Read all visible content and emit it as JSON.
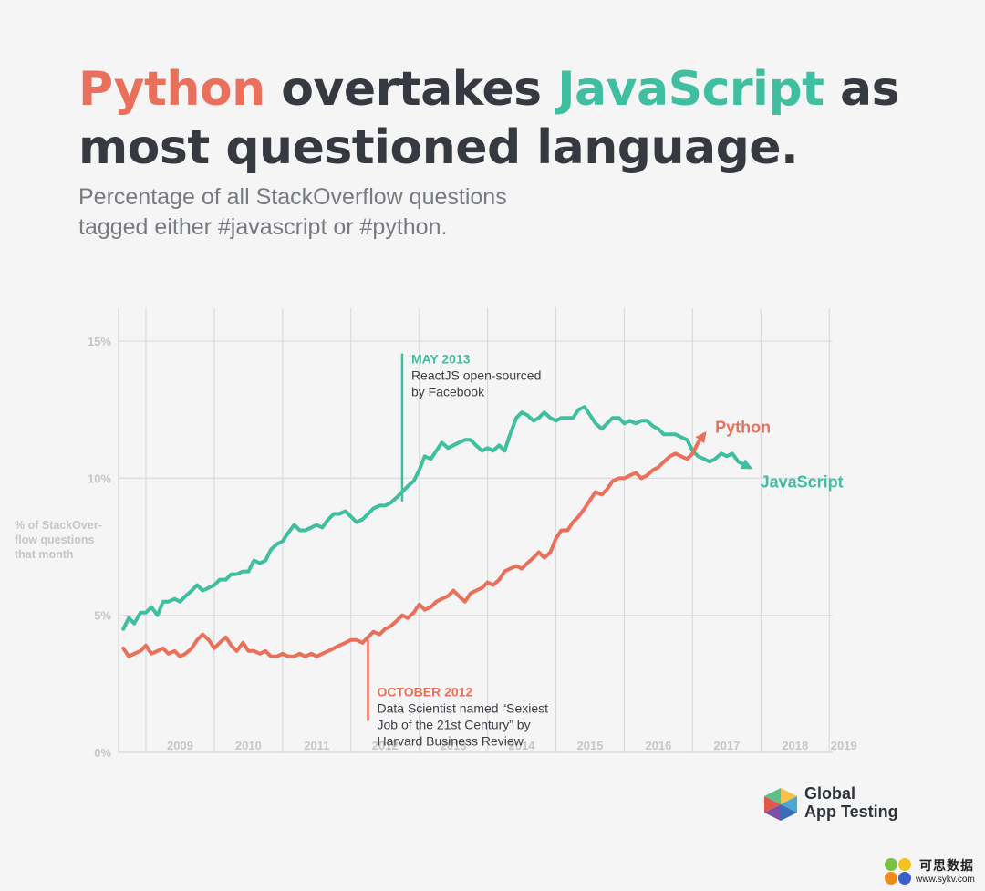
{
  "title": {
    "part1": "Python",
    "part2": " overtakes ",
    "part3": "JavaScript",
    "part4": " as most questioned language."
  },
  "subtitle": {
    "line1": "Percentage of all StackOverflow questions",
    "line2": "tagged either #javascript or #python."
  },
  "colors": {
    "python": "#e9705b",
    "javascript": "#3fbfa0",
    "title_dark": "#363a40",
    "grid": "#dadbdd",
    "axis_text": "#c4c6c9"
  },
  "chart_data": {
    "type": "line",
    "ylabel_lines": [
      "% of StackOver-",
      "flow questions",
      "that month"
    ],
    "ylim": [
      0,
      16.2
    ],
    "yticks": [
      {
        "value": 0,
        "label": "0%"
      },
      {
        "value": 5,
        "label": "5%"
      },
      {
        "value": 10,
        "label": "10%"
      },
      {
        "value": 15,
        "label": "15%"
      }
    ],
    "xlim": [
      2008.6,
      2019.05
    ],
    "xticks": [
      {
        "value": 2009,
        "label": "2009"
      },
      {
        "value": 2010,
        "label": "2010"
      },
      {
        "value": 2011,
        "label": "2011"
      },
      {
        "value": 2012,
        "label": "2012"
      },
      {
        "value": 2013,
        "label": "2013"
      },
      {
        "value": 2014,
        "label": "2014"
      },
      {
        "value": 2015,
        "label": "2015"
      },
      {
        "value": 2016,
        "label": "2016"
      },
      {
        "value": 2017,
        "label": "2017"
      },
      {
        "value": 2018,
        "label": "2018"
      },
      {
        "value": 2019,
        "label": "2019"
      }
    ],
    "grid": true,
    "series": [
      {
        "name": "JavaScript",
        "color": "#3fbfa0",
        "points": [
          [
            2008.67,
            4.5
          ],
          [
            2008.75,
            4.9
          ],
          [
            2008.83,
            4.7
          ],
          [
            2008.92,
            5.1
          ],
          [
            2009.0,
            5.1
          ],
          [
            2009.08,
            5.3
          ],
          [
            2009.17,
            5.0
          ],
          [
            2009.25,
            5.5
          ],
          [
            2009.33,
            5.5
          ],
          [
            2009.42,
            5.6
          ],
          [
            2009.5,
            5.5
          ],
          [
            2009.58,
            5.7
          ],
          [
            2009.67,
            5.9
          ],
          [
            2009.75,
            6.1
          ],
          [
            2009.83,
            5.9
          ],
          [
            2009.92,
            6.0
          ],
          [
            2010.0,
            6.1
          ],
          [
            2010.08,
            6.3
          ],
          [
            2010.17,
            6.3
          ],
          [
            2010.25,
            6.5
          ],
          [
            2010.33,
            6.5
          ],
          [
            2010.42,
            6.6
          ],
          [
            2010.5,
            6.6
          ],
          [
            2010.58,
            7.0
          ],
          [
            2010.67,
            6.9
          ],
          [
            2010.75,
            7.0
          ],
          [
            2010.83,
            7.4
          ],
          [
            2010.92,
            7.6
          ],
          [
            2011.0,
            7.7
          ],
          [
            2011.08,
            8.0
          ],
          [
            2011.17,
            8.3
          ],
          [
            2011.25,
            8.1
          ],
          [
            2011.33,
            8.1
          ],
          [
            2011.42,
            8.2
          ],
          [
            2011.5,
            8.3
          ],
          [
            2011.58,
            8.2
          ],
          [
            2011.67,
            8.5
          ],
          [
            2011.75,
            8.7
          ],
          [
            2011.83,
            8.7
          ],
          [
            2011.92,
            8.8
          ],
          [
            2012.0,
            8.6
          ],
          [
            2012.08,
            8.4
          ],
          [
            2012.17,
            8.5
          ],
          [
            2012.25,
            8.7
          ],
          [
            2012.33,
            8.9
          ],
          [
            2012.42,
            9.0
          ],
          [
            2012.5,
            9.0
          ],
          [
            2012.58,
            9.1
          ],
          [
            2012.67,
            9.3
          ],
          [
            2012.75,
            9.5
          ],
          [
            2012.83,
            9.7
          ],
          [
            2012.92,
            9.9
          ],
          [
            2013.0,
            10.3
          ],
          [
            2013.08,
            10.8
          ],
          [
            2013.17,
            10.7
          ],
          [
            2013.25,
            11.0
          ],
          [
            2013.33,
            11.3
          ],
          [
            2013.42,
            11.1
          ],
          [
            2013.5,
            11.2
          ],
          [
            2013.58,
            11.3
          ],
          [
            2013.67,
            11.4
          ],
          [
            2013.75,
            11.4
          ],
          [
            2013.83,
            11.2
          ],
          [
            2013.92,
            11.0
          ],
          [
            2014.0,
            11.1
          ],
          [
            2014.08,
            11.0
          ],
          [
            2014.17,
            11.2
          ],
          [
            2014.25,
            11.0
          ],
          [
            2014.33,
            11.6
          ],
          [
            2014.42,
            12.2
          ],
          [
            2014.5,
            12.4
          ],
          [
            2014.58,
            12.3
          ],
          [
            2014.67,
            12.1
          ],
          [
            2014.75,
            12.2
          ],
          [
            2014.83,
            12.4
          ],
          [
            2014.92,
            12.2
          ],
          [
            2015.0,
            12.1
          ],
          [
            2015.08,
            12.2
          ],
          [
            2015.17,
            12.2
          ],
          [
            2015.25,
            12.2
          ],
          [
            2015.33,
            12.5
          ],
          [
            2015.42,
            12.6
          ],
          [
            2015.5,
            12.3
          ],
          [
            2015.58,
            12.0
          ],
          [
            2015.67,
            11.8
          ],
          [
            2015.75,
            12.0
          ],
          [
            2015.83,
            12.2
          ],
          [
            2015.92,
            12.2
          ],
          [
            2016.0,
            12.0
          ],
          [
            2016.08,
            12.1
          ],
          [
            2016.17,
            12.0
          ],
          [
            2016.25,
            12.1
          ],
          [
            2016.33,
            12.1
          ],
          [
            2016.42,
            11.9
          ],
          [
            2016.5,
            11.8
          ],
          [
            2016.58,
            11.6
          ],
          [
            2016.67,
            11.6
          ],
          [
            2016.75,
            11.6
          ],
          [
            2016.83,
            11.5
          ],
          [
            2016.92,
            11.4
          ],
          [
            2017.0,
            11.0
          ],
          [
            2017.08,
            10.8
          ],
          [
            2017.17,
            10.7
          ],
          [
            2017.25,
            10.6
          ],
          [
            2017.33,
            10.7
          ],
          [
            2017.42,
            10.9
          ],
          [
            2017.5,
            10.8
          ],
          [
            2017.58,
            10.9
          ],
          [
            2017.67,
            10.6
          ],
          [
            2017.75,
            10.5
          ],
          [
            2017.83,
            10.4
          ]
        ]
      },
      {
        "name": "Python",
        "color": "#e9705b",
        "points": [
          [
            2008.67,
            3.8
          ],
          [
            2008.75,
            3.5
          ],
          [
            2008.83,
            3.6
          ],
          [
            2008.92,
            3.7
          ],
          [
            2009.0,
            3.9
          ],
          [
            2009.08,
            3.6
          ],
          [
            2009.17,
            3.7
          ],
          [
            2009.25,
            3.8
          ],
          [
            2009.33,
            3.6
          ],
          [
            2009.42,
            3.7
          ],
          [
            2009.5,
            3.5
          ],
          [
            2009.58,
            3.6
          ],
          [
            2009.67,
            3.8
          ],
          [
            2009.75,
            4.1
          ],
          [
            2009.83,
            4.3
          ],
          [
            2009.92,
            4.1
          ],
          [
            2010.0,
            3.8
          ],
          [
            2010.08,
            4.0
          ],
          [
            2010.17,
            4.2
          ],
          [
            2010.25,
            3.9
          ],
          [
            2010.33,
            3.7
          ],
          [
            2010.42,
            4.0
          ],
          [
            2010.5,
            3.7
          ],
          [
            2010.58,
            3.7
          ],
          [
            2010.67,
            3.6
          ],
          [
            2010.75,
            3.7
          ],
          [
            2010.83,
            3.5
          ],
          [
            2010.92,
            3.5
          ],
          [
            2011.0,
            3.6
          ],
          [
            2011.08,
            3.5
          ],
          [
            2011.17,
            3.5
          ],
          [
            2011.25,
            3.6
          ],
          [
            2011.33,
            3.5
          ],
          [
            2011.42,
            3.6
          ],
          [
            2011.5,
            3.5
          ],
          [
            2011.58,
            3.6
          ],
          [
            2011.67,
            3.7
          ],
          [
            2011.75,
            3.8
          ],
          [
            2011.83,
            3.9
          ],
          [
            2011.92,
            4.0
          ],
          [
            2012.0,
            4.1
          ],
          [
            2012.08,
            4.1
          ],
          [
            2012.17,
            4.0
          ],
          [
            2012.25,
            4.2
          ],
          [
            2012.33,
            4.4
          ],
          [
            2012.42,
            4.3
          ],
          [
            2012.5,
            4.5
          ],
          [
            2012.58,
            4.6
          ],
          [
            2012.67,
            4.8
          ],
          [
            2012.75,
            5.0
          ],
          [
            2012.83,
            4.9
          ],
          [
            2012.92,
            5.1
          ],
          [
            2013.0,
            5.4
          ],
          [
            2013.08,
            5.2
          ],
          [
            2013.17,
            5.3
          ],
          [
            2013.25,
            5.5
          ],
          [
            2013.33,
            5.6
          ],
          [
            2013.42,
            5.7
          ],
          [
            2013.5,
            5.9
          ],
          [
            2013.58,
            5.7
          ],
          [
            2013.67,
            5.5
          ],
          [
            2013.75,
            5.8
          ],
          [
            2013.83,
            5.9
          ],
          [
            2013.92,
            6.0
          ],
          [
            2014.0,
            6.2
          ],
          [
            2014.08,
            6.1
          ],
          [
            2014.17,
            6.3
          ],
          [
            2014.25,
            6.6
          ],
          [
            2014.33,
            6.7
          ],
          [
            2014.42,
            6.8
          ],
          [
            2014.5,
            6.7
          ],
          [
            2014.58,
            6.9
          ],
          [
            2014.67,
            7.1
          ],
          [
            2014.75,
            7.3
          ],
          [
            2014.83,
            7.1
          ],
          [
            2014.92,
            7.3
          ],
          [
            2015.0,
            7.8
          ],
          [
            2015.08,
            8.1
          ],
          [
            2015.17,
            8.1
          ],
          [
            2015.25,
            8.4
          ],
          [
            2015.33,
            8.6
          ],
          [
            2015.42,
            8.9
          ],
          [
            2015.5,
            9.2
          ],
          [
            2015.58,
            9.5
          ],
          [
            2015.67,
            9.4
          ],
          [
            2015.75,
            9.6
          ],
          [
            2015.83,
            9.9
          ],
          [
            2015.92,
            10.0
          ],
          [
            2016.0,
            10.0
          ],
          [
            2016.08,
            10.1
          ],
          [
            2016.17,
            10.2
          ],
          [
            2016.25,
            10.0
          ],
          [
            2016.33,
            10.1
          ],
          [
            2016.42,
            10.3
          ],
          [
            2016.5,
            10.4
          ],
          [
            2016.58,
            10.6
          ],
          [
            2016.67,
            10.8
          ],
          [
            2016.75,
            10.9
          ],
          [
            2016.83,
            10.8
          ],
          [
            2016.92,
            10.7
          ],
          [
            2017.0,
            10.9
          ],
          [
            2017.08,
            11.3
          ],
          [
            2017.17,
            11.6
          ]
        ]
      }
    ],
    "series_labels": [
      {
        "name": "Python",
        "text": "Python"
      },
      {
        "name": "JavaScript",
        "text": "JavaScript"
      }
    ],
    "annotations": [
      {
        "id": "may-2013",
        "series": "JavaScript",
        "x": 2012.75,
        "y_top": 14.55,
        "y_bottom": 9.15,
        "heading": "MAY 2013",
        "lines": [
          "ReactJS open-sourced",
          "by Facebook"
        ]
      },
      {
        "id": "october-2012",
        "series": "Python",
        "x": 2012.25,
        "y_top": 4.1,
        "y_bottom": 1.15,
        "heading": "OCTOBER 2012",
        "lines": [
          "Data Scientist named “Sexiest",
          "Job of the 21st Century” by",
          "Harvard Business Review"
        ]
      }
    ]
  },
  "logo": {
    "line1": "Global",
    "line2": "App Testing"
  },
  "watermark": {
    "cn": "可思数据",
    "url": "www.sykv.com"
  }
}
